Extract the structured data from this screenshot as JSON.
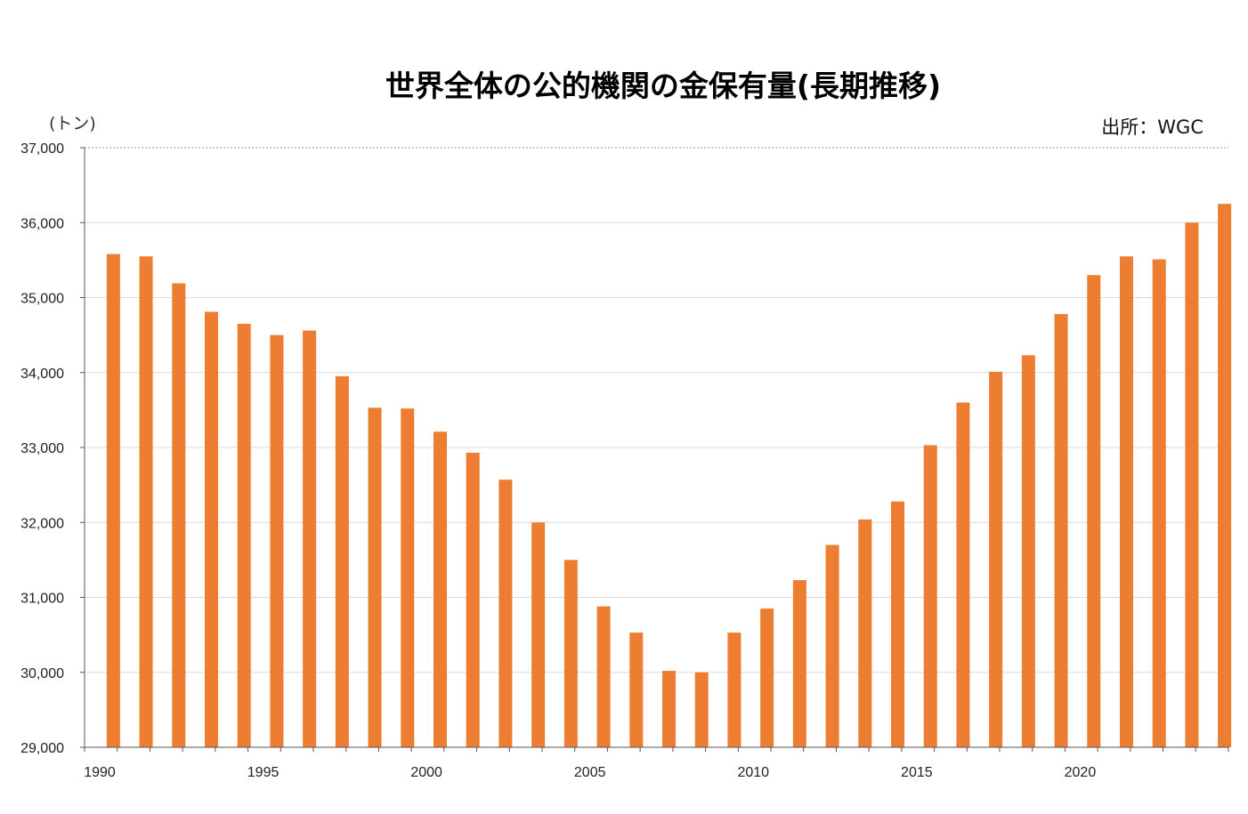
{
  "chart_data": {
    "type": "bar",
    "title": "世界全体の公的機関の金保有量(長期推移)",
    "unit_label": "(トン)",
    "source": "出所：WGC",
    "xlabel": "",
    "ylabel": "",
    "ylim": [
      29000,
      37000
    ],
    "yticks": [
      29000,
      30000,
      31000,
      32000,
      33000,
      34000,
      35000,
      36000,
      37000
    ],
    "ytick_labels": [
      "29,000",
      "30,000",
      "31,000",
      "32,000",
      "33,000",
      "34,000",
      "35,000",
      "36,000",
      "37,000"
    ],
    "grid": true,
    "bar_color": "#ED7D31",
    "categories": [
      1990,
      1991,
      1992,
      1993,
      1994,
      1995,
      1996,
      1997,
      1998,
      1999,
      2000,
      2001,
      2002,
      2003,
      2004,
      2005,
      2006,
      2007,
      2008,
      2009,
      2010,
      2011,
      2012,
      2013,
      2014,
      2015,
      2016,
      2017,
      2018,
      2019,
      2020,
      2021,
      2022,
      2023,
      2024
    ],
    "xtick_labels": [
      "1990",
      "1995",
      "2000",
      "2005",
      "2010",
      "2015",
      "2020"
    ],
    "values": [
      35580,
      35550,
      35190,
      34810,
      34650,
      34500,
      34560,
      33950,
      33530,
      33520,
      33210,
      32930,
      32570,
      32000,
      31500,
      30880,
      30530,
      30020,
      30000,
      30530,
      30850,
      31230,
      31700,
      32040,
      32280,
      33030,
      33600,
      34010,
      34230,
      34780,
      35300,
      35550,
      35510,
      36000,
      36250
    ]
  }
}
